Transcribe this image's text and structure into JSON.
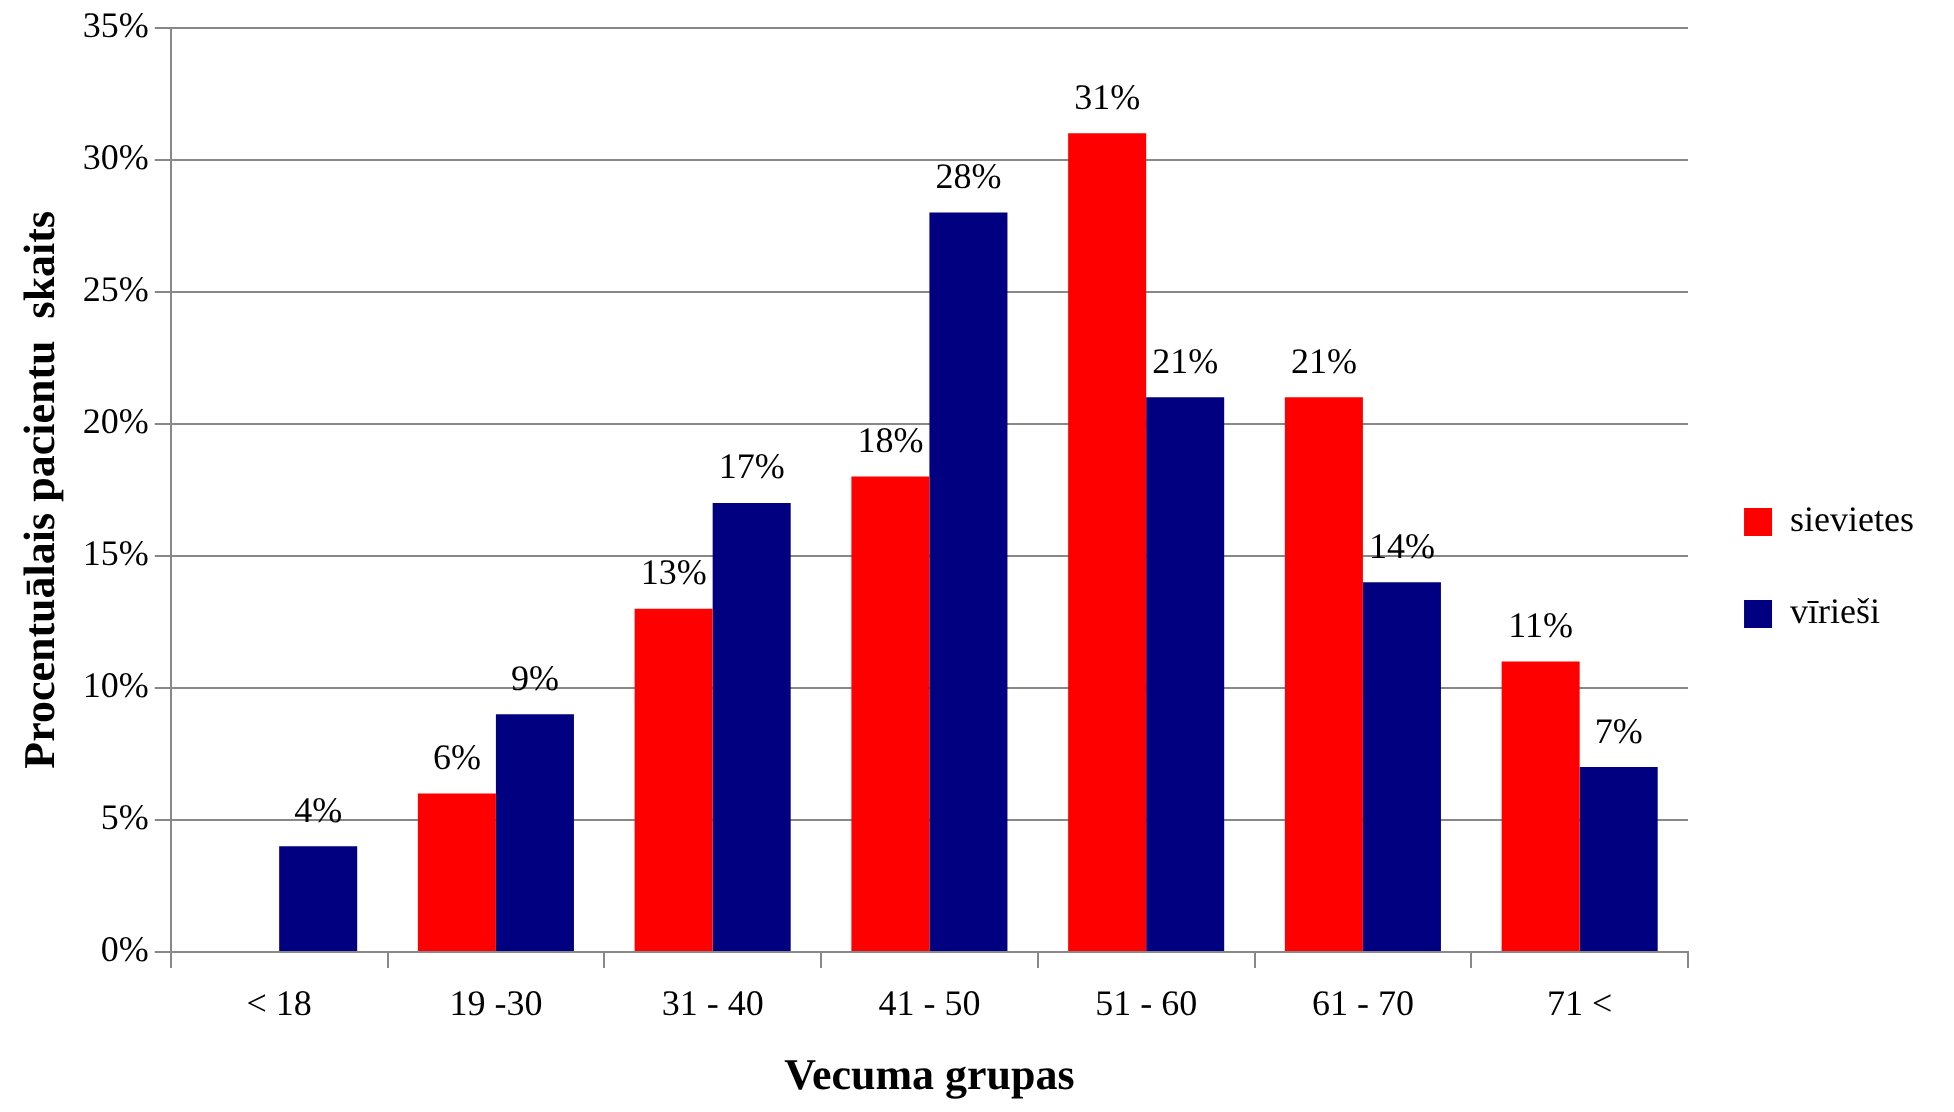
{
  "chart_data": {
    "type": "bar",
    "xlabel": "Vecuma grupas",
    "ylabel": "Procentuālais pacientu  skaits",
    "categories": [
      "< 18",
      "19 -30",
      "31 - 40",
      "41 - 50",
      "51 - 60",
      "61 - 70",
      "71 <"
    ],
    "series": [
      {
        "name": "sievietes",
        "color": "#ff0000",
        "values": [
          null,
          6,
          13,
          18,
          31,
          21,
          11
        ],
        "value_labels": [
          null,
          "6%",
          "13%",
          "18%",
          "31%",
          "21%",
          "11%"
        ]
      },
      {
        "name": "vīrieši",
        "color": "#000080",
        "values": [
          4,
          9,
          17,
          28,
          21,
          14,
          7
        ],
        "value_labels": [
          "4%",
          "9%",
          "17%",
          "28%",
          "21%",
          "14%",
          "7%"
        ]
      }
    ],
    "ylim": [
      0,
      35
    ],
    "yticks": [
      {
        "value": 0,
        "label": "0%"
      },
      {
        "value": 5,
        "label": "5%"
      },
      {
        "value": 10,
        "label": "10%"
      },
      {
        "value": 15,
        "label": "15%"
      },
      {
        "value": 20,
        "label": "20%"
      },
      {
        "value": 25,
        "label": "25%"
      },
      {
        "value": 30,
        "label": "30%"
      },
      {
        "value": 35,
        "label": "35%"
      }
    ],
    "grid": "y",
    "legend": "right"
  }
}
